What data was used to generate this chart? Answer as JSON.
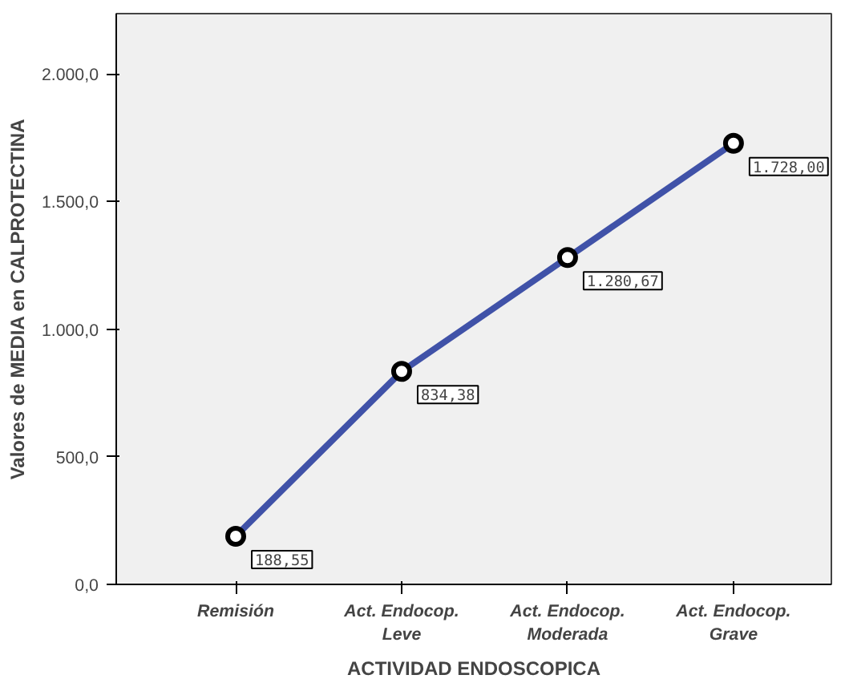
{
  "chart_data": {
    "type": "line",
    "xlabel": "ACTIVIDAD ENDOSCOPICA",
    "ylabel": "Valores de MEDIA en CALPROTECTINA",
    "categories": [
      "Remisión",
      "Act. Endocop.\nLeve",
      "Act. Endocop.\nModerada",
      "Act. Endocop.\nGrave"
    ],
    "series": [
      {
        "color": "#4052a8",
        "values": [
          188.55,
          834.38,
          1280.67,
          1728.0
        ],
        "value_labels": [
          "188,55",
          "834,38",
          "1.280,67",
          "1.728,00"
        ]
      }
    ],
    "ylim": [
      0,
      2236
    ],
    "yticks": [
      {
        "value": 0,
        "label": "0,0"
      },
      {
        "value": 500,
        "label": "500,0"
      },
      {
        "value": 1000,
        "label": "1.000,0"
      },
      {
        "value": 1500,
        "label": "1.500,0"
      },
      {
        "value": 2000,
        "label": "2.000,0"
      }
    ],
    "marker": "circle",
    "grid": false
  }
}
